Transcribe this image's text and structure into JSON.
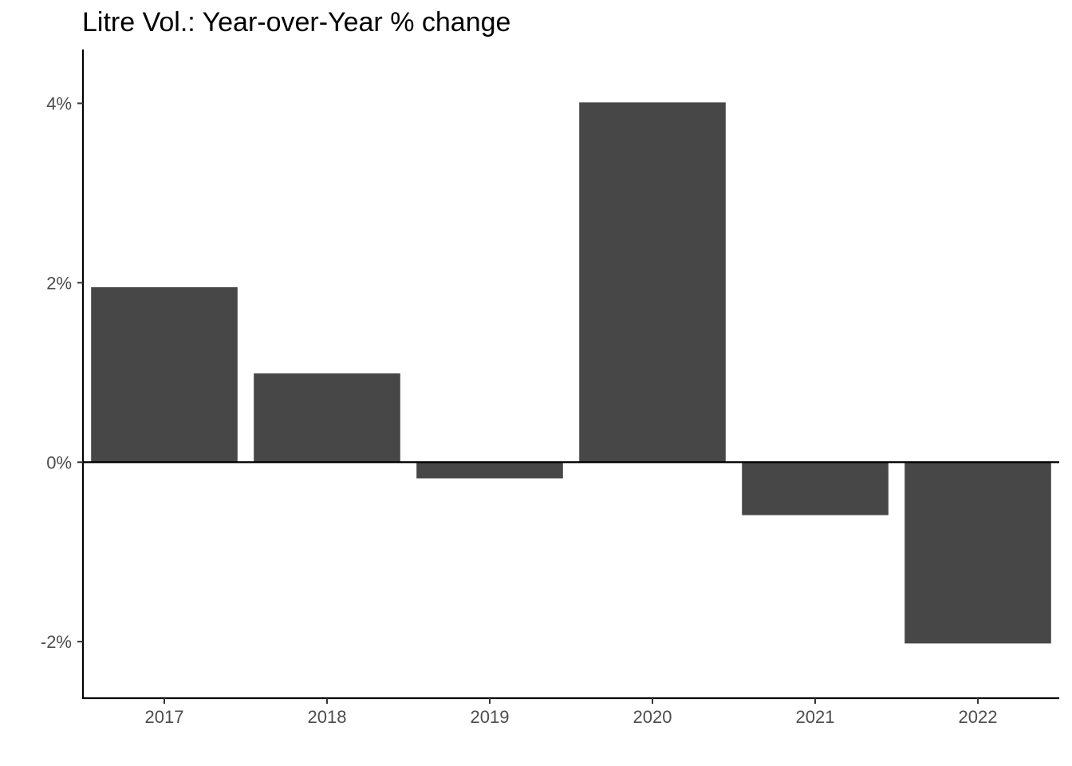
{
  "chart_data": {
    "type": "bar",
    "title": "Litre Vol.: Year-over-Year % change",
    "xlabel": "",
    "ylabel": "",
    "categories": [
      "2017",
      "2018",
      "2019",
      "2020",
      "2021",
      "2022"
    ],
    "values": [
      1.95,
      0.99,
      -0.18,
      4.01,
      -0.59,
      -2.02
    ],
    "y_ticks": [
      {
        "value": 4,
        "label": "4%"
      },
      {
        "value": 2,
        "label": "2%"
      },
      {
        "value": 0,
        "label": "0%"
      },
      {
        "value": -2,
        "label": "-2%"
      }
    ],
    "ylim": [
      -2.63,
      4.6
    ],
    "grid": false,
    "zero_line": true,
    "bar_color": "#474747",
    "axis_color": "#000000"
  }
}
